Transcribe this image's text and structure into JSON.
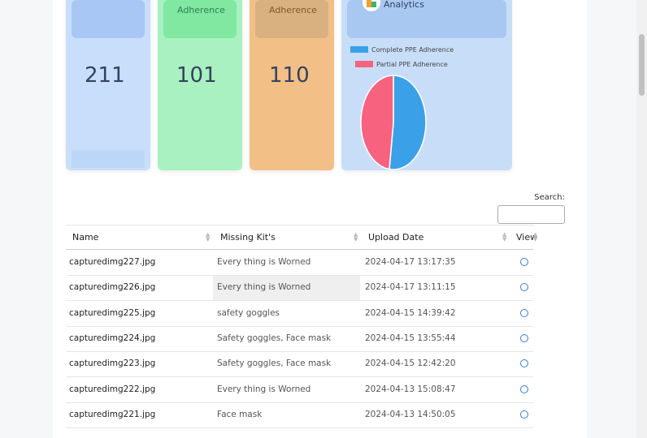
{
  "cards": [
    {
      "value": 211
    },
    {
      "label": "Adherence",
      "value": 101
    },
    {
      "label": "Adherence",
      "value": 110
    }
  ],
  "chart_data": {
    "type": "pie",
    "title": "Analytics",
    "categories": [
      "Complete PPE Adherence",
      "Partial PPE Adherence"
    ],
    "values": [
      52,
      48
    ],
    "colors": [
      "#3aa0e8",
      "#f7637f"
    ]
  },
  "search": {
    "label": "Search:"
  },
  "table": {
    "columns": [
      "Name",
      "Missing Kit's",
      "Upload Date",
      "View"
    ],
    "rows": [
      [
        "capturedimg227.jpg",
        "Every thing is Worned",
        "2024-04-17 13:17:35"
      ],
      [
        "capturedimg226.jpg",
        "Every thing is Worned",
        "2024-04-17 13:11:15"
      ],
      [
        "capturedimg225.jpg",
        "safety goggles",
        "2024-04-15 14:39:42"
      ],
      [
        "capturedimg224.jpg",
        "Safety goggles, Face mask",
        "2024-04-15 13:55:44"
      ],
      [
        "capturedimg223.jpg",
        "Safety goggles, Face mask",
        "2024-04-15 12:42:20"
      ],
      [
        "capturedimg222.jpg",
        "Every thing is Worned",
        "2024-04-13 15:08:47"
      ],
      [
        "capturedimg221.jpg",
        "Face mask",
        "2024-04-13 14:50:05"
      ]
    ]
  }
}
